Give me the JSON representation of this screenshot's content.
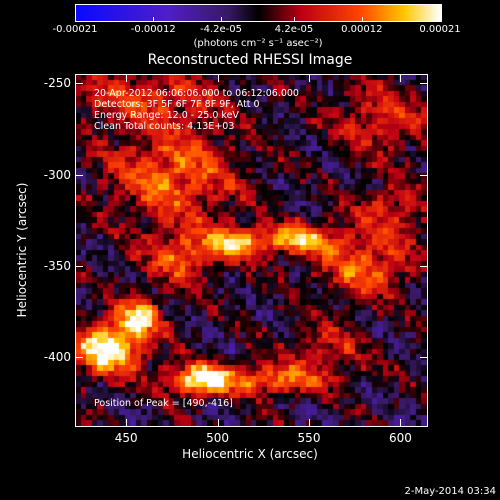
{
  "colorbar": {
    "ticks": [
      {
        "label": "-0.00021",
        "value": -0.00021
      },
      {
        "label": "-0.00012",
        "value": -0.00012
      },
      {
        "label": "-4.2e-05",
        "value": -4.2e-05
      },
      {
        "label": "4.2e-05",
        "value": 4.2e-05
      },
      {
        "label": "0.00012",
        "value": 0.00012
      },
      {
        "label": "0.00021",
        "value": 0.00021
      }
    ],
    "min": -0.00021,
    "max": 0.00021,
    "unit_label": "(photons cm⁻² s⁻¹ asec⁻²)"
  },
  "chart_data": {
    "type": "heatmap",
    "title": "Reconstructed RHESSI Image",
    "xlabel": "Heliocentric X (arcsec)",
    "ylabel": "Heliocentric Y (arcsec)",
    "xlim": [
      422,
      614
    ],
    "ylim": [
      -437,
      -245
    ],
    "xticks": [
      450,
      500,
      550,
      600
    ],
    "yticks": [
      -250,
      -300,
      -350,
      -400
    ],
    "annotations": [
      "20-Apr-2012 06:06:06.000 to 06:12:06.000",
      "Detectors: 3F 5F 6F 7F 8F 9F, Att 0",
      "Energy Range: 12.0 - 25.0 keV",
      "Clean    Total counts: 4.13E+03"
    ],
    "peak_label": "Position of Peak = [490,-416]",
    "peak": [
      490,
      -416
    ],
    "hot_regions": [
      {
        "x": 440,
        "y": -395,
        "sx": 14,
        "sy": 10,
        "a": 1.0
      },
      {
        "x": 457,
        "y": -378,
        "sx": 9,
        "sy": 7,
        "a": 0.8
      },
      {
        "x": 490,
        "y": -412,
        "sx": 12,
        "sy": 6,
        "a": 0.95
      },
      {
        "x": 530,
        "y": -412,
        "sx": 22,
        "sy": 6,
        "a": 0.6
      },
      {
        "x": 510,
        "y": -337,
        "sx": 12,
        "sy": 6,
        "a": 0.8
      },
      {
        "x": 545,
        "y": -335,
        "sx": 14,
        "sy": 6,
        "a": 0.75
      },
      {
        "x": 580,
        "y": -350,
        "sx": 18,
        "sy": 12,
        "a": 0.55
      },
      {
        "x": 475,
        "y": -300,
        "sx": 25,
        "sy": 18,
        "a": 0.6
      },
      {
        "x": 480,
        "y": -345,
        "sx": 14,
        "sy": 10,
        "a": 0.55
      },
      {
        "x": 460,
        "y": -258,
        "sx": 30,
        "sy": 10,
        "a": 0.45
      },
      {
        "x": 590,
        "y": -270,
        "sx": 20,
        "sy": 14,
        "a": 0.4
      },
      {
        "x": 595,
        "y": -320,
        "sx": 15,
        "sy": 10,
        "a": 0.4
      },
      {
        "x": 560,
        "y": -395,
        "sx": 16,
        "sy": 10,
        "a": 0.35
      }
    ]
  },
  "footer_date": "2-May-2014 03:34"
}
